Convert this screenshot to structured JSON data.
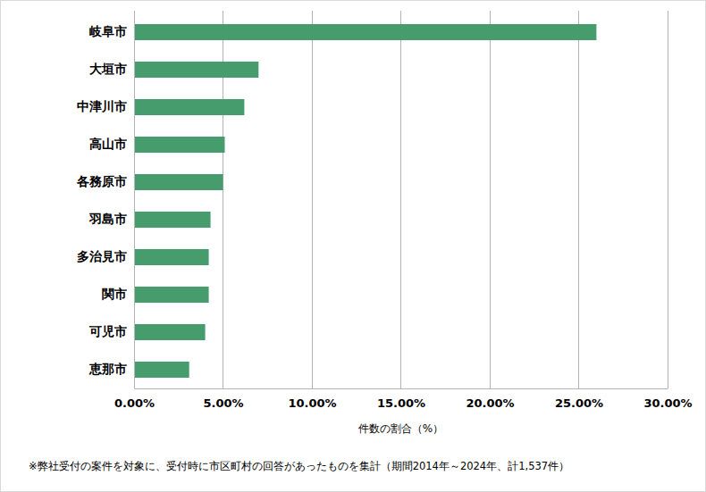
{
  "chart_data": {
    "type": "bar",
    "orientation": "horizontal",
    "categories": [
      "岐阜市",
      "大垣市",
      "中津川市",
      "高山市",
      "各務原市",
      "羽島市",
      "多治見市",
      "関市",
      "可児市",
      "恵那市"
    ],
    "values": [
      26.0,
      7.0,
      6.2,
      5.1,
      5.0,
      4.3,
      4.2,
      4.2,
      4.0,
      3.1
    ],
    "color": "#469c6c",
    "xlabel": "件数の割合（%）",
    "xlim": [
      0,
      30
    ],
    "xticks": [
      {
        "value": 0,
        "label": "0.00%"
      },
      {
        "value": 5,
        "label": "5.00%"
      },
      {
        "value": 10,
        "label": "10.00%"
      },
      {
        "value": 15,
        "label": "15.00%"
      },
      {
        "value": 20,
        "label": "20.00%"
      },
      {
        "value": 25,
        "label": "25.00%"
      },
      {
        "value": 30,
        "label": "30.00%"
      }
    ],
    "grid": true,
    "annotations": [
      "※弊社受付の案件を対象に、受付時に市区町村の回答があったものを集計（期間2014年～2024年、計1,537件）"
    ]
  }
}
